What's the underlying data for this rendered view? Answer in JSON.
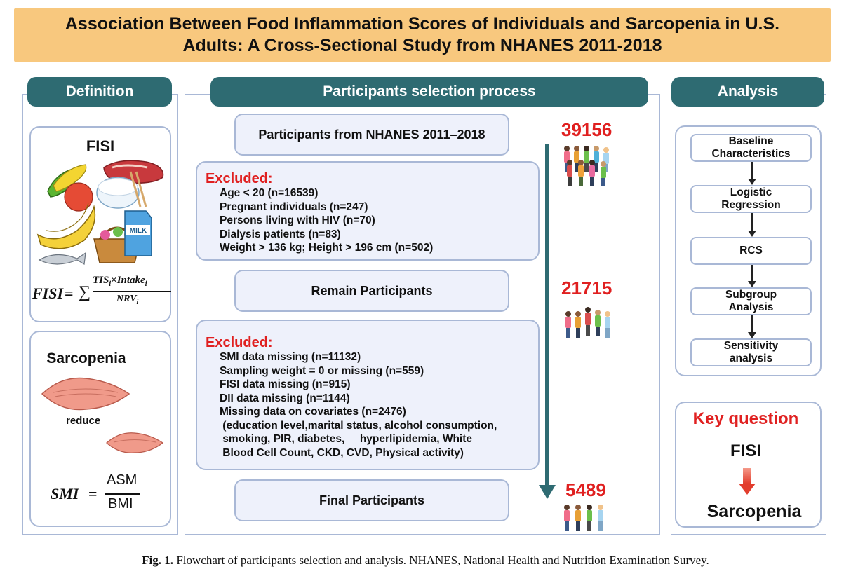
{
  "title": {
    "line1": "Association Between Food Inflammation Scores of Individuals and Sarcopenia in U.S.",
    "line2": "Adults: A Cross-Sectional Study from NHANES 2011-2018"
  },
  "definition": {
    "header": "Definition",
    "fisi_label": "FISI",
    "milk_label": "MILK",
    "fisi_formula": {
      "lhs": "FISI",
      "numerator_tis": "TIS",
      "numerator_intake": "Intake",
      "sub_i": "i",
      "denominator": "NRV"
    },
    "sarcopenia_label": "Sarcopenia",
    "reduce_label": "reduce",
    "smi_formula": {
      "lhs": "SMI",
      "numerator": "ASM",
      "denominator": "BMI"
    }
  },
  "selection": {
    "header": "Participants selection process",
    "start_label": "Participants from NHANES 2011–2018",
    "exclusion1": {
      "title": "Excluded:",
      "items": [
        "Age < 20 (n=16539)",
        "Pregnant individuals (n=247)",
        "Persons living with HIV (n=70)",
        "Dialysis patients (n=83)",
        "Weight > 136 kg; Height > 196 cm (n=502)"
      ]
    },
    "remain_label": "Remain Participants",
    "exclusion2": {
      "title": "Excluded:",
      "items": [
        "SMI data missing (n=11132)",
        "Sampling weight = 0 or missing (n=559)",
        "FISI data missing (n=915)",
        "DII data missing (n=1144)",
        "Missing data on covariates (n=2476)",
        " (education level,marital status, alcohol consumption,",
        " smoking, PIR, diabetes,     hyperlipidemia, White",
        " Blood Cell Count, CKD, CVD, Physical activity)"
      ]
    },
    "final_label": "Final Participants",
    "counts": [
      "39156",
      "21715",
      "5489"
    ]
  },
  "analysis": {
    "header": "Analysis",
    "steps": [
      [
        "Baseline",
        "Characteristics"
      ],
      [
        "Logistic",
        "Regression"
      ],
      [
        "RCS"
      ],
      [
        "Subgroup",
        "Analysis"
      ],
      [
        "Sensitivity",
        "analysis"
      ]
    ],
    "key_question": {
      "title": "Key question",
      "from": "FISI",
      "to": "Sarcopenia"
    }
  },
  "caption": {
    "label": "Fig. 1.",
    "text": " Flowchart of participants selection and analysis. NHANES, National Health and Nutrition Examination Survey."
  },
  "colors": {
    "banner": "#f8c87e",
    "header_teal": "#2e6b72",
    "box_border": "#a9b8d6",
    "box_fill": "#eef1fb",
    "accent_red": "#e02020",
    "flow_arrow": "#2e6b72"
  }
}
